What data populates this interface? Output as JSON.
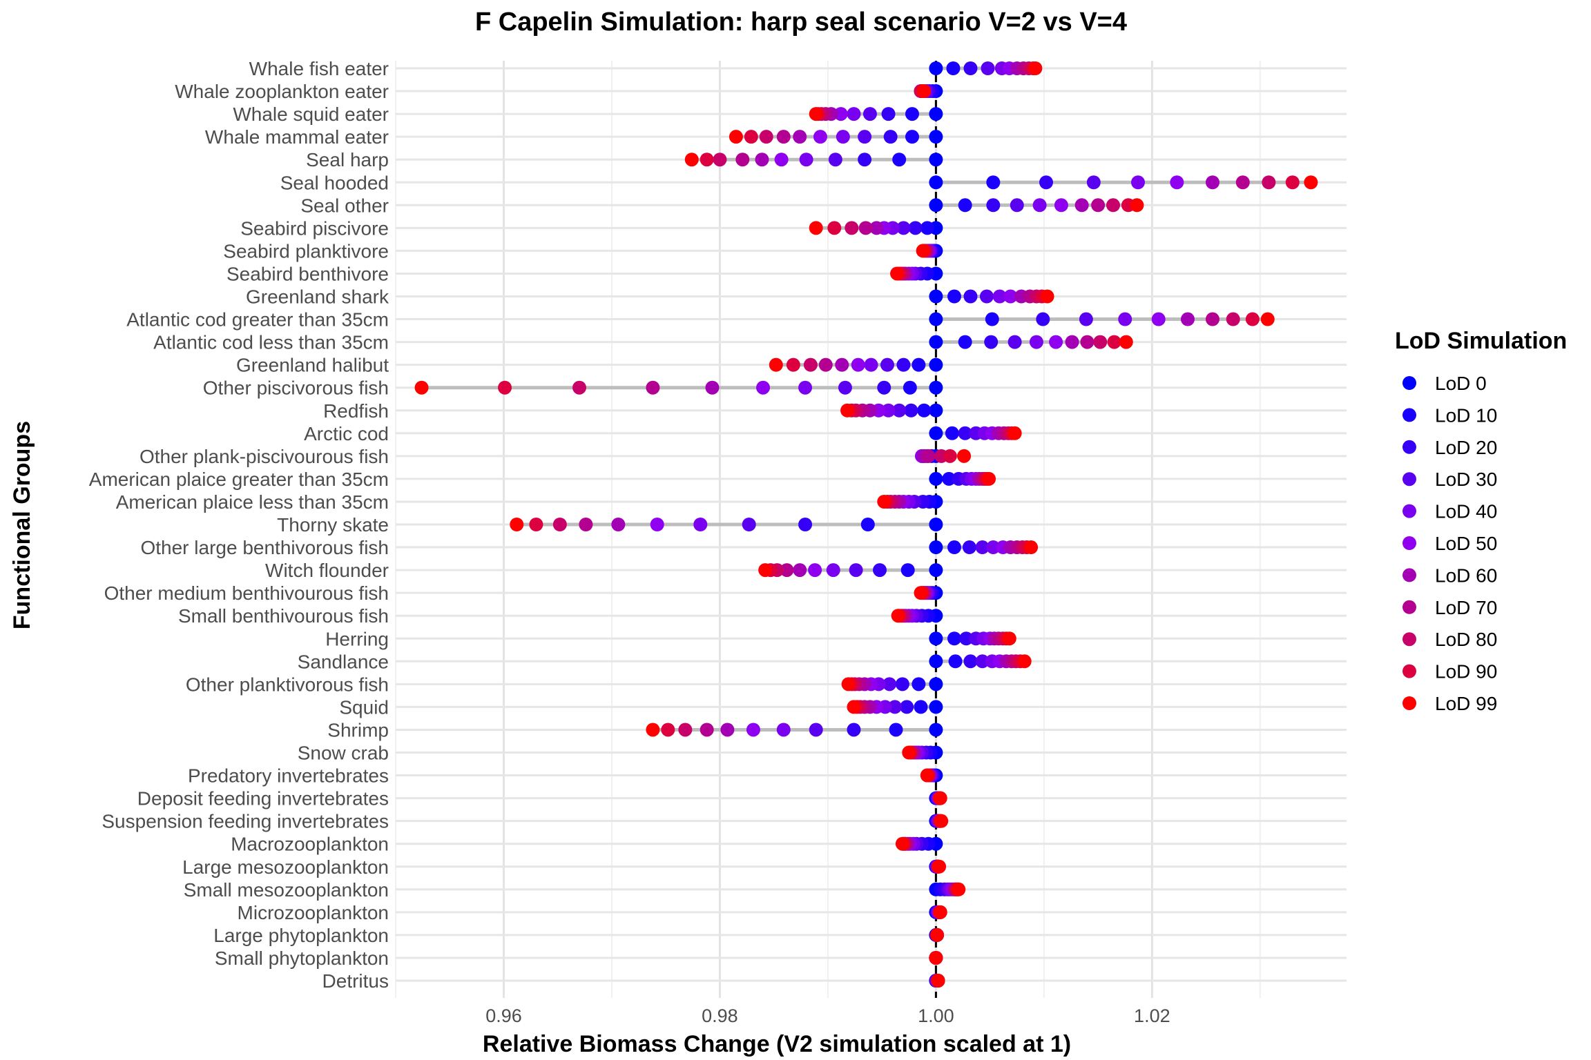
{
  "chart_data": {
    "type": "scatter",
    "title": "F Capelin Simulation: harp seal scenario V=2 vs V=4",
    "xlabel": "Relative Biomass Change (V2 simulation scaled at 1)",
    "ylabel": "Functional Groups",
    "xlim": [
      0.95,
      1.038
    ],
    "xticks": [
      0.96,
      0.98,
      1.0,
      1.02
    ],
    "xtick_labels": [
      "0.96",
      "0.98",
      "1.00",
      "1.02"
    ],
    "reference_line": 1.0,
    "grid": true,
    "legend": {
      "title": "LoD Simulation",
      "position": "right",
      "items": [
        "LoD 0",
        "LoD 10",
        "LoD 20",
        "LoD 30",
        "LoD 40",
        "LoD 50",
        "LoD 60",
        "LoD 70",
        "LoD 80",
        "LoD 90",
        "LoD 99"
      ],
      "colors": [
        "#0000ff",
        "#1a00ff",
        "#3500f5",
        "#5a00f0",
        "#7a00f0",
        "#8f00f0",
        "#a300b5",
        "#b40090",
        "#c8006a",
        "#dc0040",
        "#ff0000"
      ]
    },
    "groups": [
      {
        "name": "Whale fish eater",
        "values": [
          1.0,
          1.0016,
          1.0032,
          1.0048,
          1.0061,
          1.0068,
          1.0075,
          1.0081,
          1.0086,
          1.009,
          1.0092
        ]
      },
      {
        "name": "Whale zooplankton eater",
        "values": [
          1.0,
          0.9997,
          0.9994,
          0.9992,
          0.999,
          0.9988,
          0.9987,
          0.9986,
          0.9986,
          0.9987,
          0.9989
        ]
      },
      {
        "name": "Whale squid eater",
        "values": [
          1.0,
          0.9978,
          0.9956,
          0.9939,
          0.9924,
          0.9912,
          0.9903,
          0.9898,
          0.9894,
          0.9891,
          0.9889
        ]
      },
      {
        "name": "Whale mammal eater",
        "values": [
          1.0,
          0.9978,
          0.9958,
          0.9934,
          0.9914,
          0.9893,
          0.9874,
          0.9859,
          0.9843,
          0.9829,
          0.9815
        ]
      },
      {
        "name": "Seal harp",
        "values": [
          1.0,
          0.9966,
          0.9934,
          0.9907,
          0.988,
          0.9857,
          0.9839,
          0.9821,
          0.98,
          0.9788,
          0.9774
        ]
      },
      {
        "name": "Seal hooded",
        "values": [
          1.0,
          1.0053,
          1.0102,
          1.0146,
          1.0187,
          1.0223,
          1.0256,
          1.0284,
          1.0308,
          1.033,
          1.0347
        ]
      },
      {
        "name": "Seal other",
        "values": [
          1.0,
          1.0027,
          1.0053,
          1.0075,
          1.0096,
          1.0116,
          1.0135,
          1.015,
          1.0164,
          1.0178,
          1.0186
        ]
      },
      {
        "name": "Seabird piscivore",
        "values": [
          1.0,
          0.9992,
          0.9981,
          0.997,
          0.996,
          0.9952,
          0.9945,
          0.9935,
          0.9922,
          0.9906,
          0.9889
        ]
      },
      {
        "name": "Seabird planktivore",
        "values": [
          1.0,
          0.9998,
          0.9996,
          0.9995,
          0.9994,
          0.9993,
          0.9992,
          0.9991,
          0.999,
          0.9989,
          0.9988
        ]
      },
      {
        "name": "Seabird benthivore",
        "values": [
          1.0,
          0.9992,
          0.9986,
          0.9981,
          0.9978,
          0.9975,
          0.9972,
          0.997,
          0.9968,
          0.9966,
          0.9964
        ]
      },
      {
        "name": "Greenland shark",
        "values": [
          1.0,
          1.0017,
          1.0032,
          1.0047,
          1.0059,
          1.0069,
          1.0079,
          1.0087,
          1.0093,
          1.0098,
          1.0103
        ]
      },
      {
        "name": "Atlantic cod greater than 35cm",
        "values": [
          1.0,
          1.0052,
          1.0099,
          1.0139,
          1.0175,
          1.0206,
          1.0233,
          1.0256,
          1.0275,
          1.0293,
          1.0307
        ]
      },
      {
        "name": "Atlantic cod less than 35cm",
        "values": [
          1.0,
          1.0027,
          1.0051,
          1.0073,
          1.0093,
          1.0111,
          1.0126,
          1.014,
          1.0152,
          1.0165,
          1.0176
        ]
      },
      {
        "name": "Greenland halibut",
        "values": [
          1.0,
          0.9984,
          0.997,
          0.9955,
          0.994,
          0.9928,
          0.9913,
          0.9898,
          0.9884,
          0.9868,
          0.9852
        ]
      },
      {
        "name": "Other piscivorous fish",
        "values": [
          1.0,
          0.9976,
          0.9952,
          0.9916,
          0.9879,
          0.984,
          0.9793,
          0.9738,
          0.967,
          0.9601,
          0.9524
        ]
      },
      {
        "name": "Redfish",
        "values": [
          1.0,
          0.9989,
          0.9977,
          0.9966,
          0.9956,
          0.9947,
          0.9939,
          0.9932,
          0.9926,
          0.9922,
          0.9918
        ]
      },
      {
        "name": "Arctic cod",
        "values": [
          1.0,
          1.0015,
          1.0027,
          1.0037,
          1.0045,
          1.0052,
          1.0058,
          1.0063,
          1.0067,
          1.007,
          1.0073
        ]
      },
      {
        "name": "Other plank-piscivourous fish",
        "values": [
          1.0,
          0.9996,
          0.9992,
          0.9989,
          0.9987,
          0.9987,
          0.9989,
          0.9993,
          1.0005,
          1.0013,
          1.0026
        ]
      },
      {
        "name": "American plaice greater than 35cm",
        "values": [
          1.0,
          1.0012,
          1.0021,
          1.0028,
          1.0033,
          1.0037,
          1.004,
          1.0043,
          1.0045,
          1.0047,
          1.0049
        ]
      },
      {
        "name": "American plaice less than 35cm",
        "values": [
          1.0,
          0.9994,
          0.9988,
          0.998,
          0.9975,
          0.997,
          0.9966,
          0.9962,
          0.9958,
          0.9955,
          0.9952
        ]
      },
      {
        "name": "Thorny skate",
        "values": [
          1.0,
          0.9937,
          0.9879,
          0.9827,
          0.9782,
          0.9742,
          0.9706,
          0.9676,
          0.9652,
          0.963,
          0.9612
        ]
      },
      {
        "name": "Other large benthivorous fish",
        "values": [
          1.0,
          1.0017,
          1.0031,
          1.0043,
          1.0053,
          1.0062,
          1.0069,
          1.0075,
          1.008,
          1.0084,
          1.0088
        ]
      },
      {
        "name": "Witch flounder",
        "values": [
          1.0,
          0.9974,
          0.9948,
          0.9926,
          0.9905,
          0.9888,
          0.9874,
          0.9862,
          0.9853,
          0.9847,
          0.9842
        ]
      },
      {
        "name": "Other medium benthivourous fish",
        "values": [
          1.0,
          0.9997,
          0.9995,
          0.9993,
          0.9992,
          0.9991,
          0.999,
          0.9989,
          0.9988,
          0.9987,
          0.9986
        ]
      },
      {
        "name": "Small benthivourous fish",
        "values": [
          1.0,
          0.9993,
          0.9987,
          0.9982,
          0.9978,
          0.9975,
          0.9972,
          0.997,
          0.9968,
          0.9966,
          0.9965
        ]
      },
      {
        "name": "Herring",
        "values": [
          1.0,
          1.0017,
          1.0028,
          1.0037,
          1.0044,
          1.005,
          1.0054,
          1.0058,
          1.0062,
          1.0065,
          1.0068
        ]
      },
      {
        "name": "Sandlance",
        "values": [
          1.0,
          1.0018,
          1.0032,
          1.0043,
          1.0052,
          1.0059,
          1.0065,
          1.007,
          1.0074,
          1.0078,
          1.0082
        ]
      },
      {
        "name": "Other planktivorous fish",
        "values": [
          1.0,
          0.9984,
          0.9969,
          0.9957,
          0.9947,
          0.994,
          0.9934,
          0.9929,
          0.9925,
          0.9922,
          0.9919
        ]
      },
      {
        "name": "Squid",
        "values": [
          1.0,
          0.9986,
          0.9973,
          0.9962,
          0.9953,
          0.9945,
          0.9939,
          0.9934,
          0.993,
          0.9927,
          0.9924
        ]
      },
      {
        "name": "Shrimp",
        "values": [
          1.0,
          0.9963,
          0.9924,
          0.9889,
          0.9859,
          0.9831,
          0.9807,
          0.9788,
          0.9768,
          0.9752,
          0.9738
        ]
      },
      {
        "name": "Snow crab",
        "values": [
          1.0,
          0.9995,
          0.9991,
          0.9987,
          0.9984,
          0.9982,
          0.998,
          0.9978,
          0.9977,
          0.9976,
          0.9975
        ]
      },
      {
        "name": "Predatory invertebrates",
        "values": [
          1.0,
          0.9998,
          0.9997,
          0.9996,
          0.9995,
          0.9994,
          0.9994,
          0.9993,
          0.9993,
          0.9992,
          0.9992
        ]
      },
      {
        "name": "Deposit feeding invertebrates",
        "values": [
          1.0,
          1.0001,
          1.0001,
          1.0002,
          1.0002,
          1.0003,
          1.0003,
          1.0003,
          1.0004,
          1.0004,
          1.0004
        ]
      },
      {
        "name": "Suspension feeding invertebrates",
        "values": [
          1.0,
          1.0001,
          1.0001,
          1.0002,
          1.0002,
          1.0003,
          1.0003,
          1.0004,
          1.0004,
          1.0004,
          1.0005
        ]
      },
      {
        "name": "Macrozooplankton",
        "values": [
          1.0,
          0.9993,
          0.9987,
          0.9982,
          0.9979,
          0.9976,
          0.9974,
          0.9972,
          0.9971,
          0.997,
          0.9969
        ]
      },
      {
        "name": "Large mesozooplankton",
        "values": [
          1.0,
          1.0,
          1.0001,
          1.0001,
          1.0001,
          1.0002,
          1.0002,
          1.0002,
          1.0002,
          1.0002,
          1.0003
        ]
      },
      {
        "name": "Small mesozooplankton",
        "values": [
          1.0,
          1.0004,
          1.0008,
          1.0011,
          1.0013,
          1.0015,
          1.0017,
          1.0018,
          1.0019,
          1.002,
          1.0021
        ]
      },
      {
        "name": "Microzooplankton",
        "values": [
          1.0,
          1.0001,
          1.0001,
          1.0002,
          1.0002,
          1.0003,
          1.0003,
          1.0003,
          1.0004,
          1.0004,
          1.0004
        ]
      },
      {
        "name": "Large phytoplankton",
        "values": [
          1.0,
          1.0,
          1.0001,
          1.0001,
          1.0001,
          1.0001,
          1.0001,
          1.0001,
          1.0001,
          1.0001,
          1.0001
        ]
      },
      {
        "name": "Small phytoplankton",
        "values": [
          1.0,
          1.0,
          1.0,
          1.0,
          1.0,
          1.0,
          1.0,
          1.0,
          1.0,
          1.0,
          1.0
        ]
      },
      {
        "name": "Detritus",
        "values": [
          1.0,
          1.0,
          1.0001,
          1.0001,
          1.0001,
          1.0001,
          1.0001,
          1.0002,
          1.0002,
          1.0002,
          1.0002
        ]
      }
    ]
  }
}
